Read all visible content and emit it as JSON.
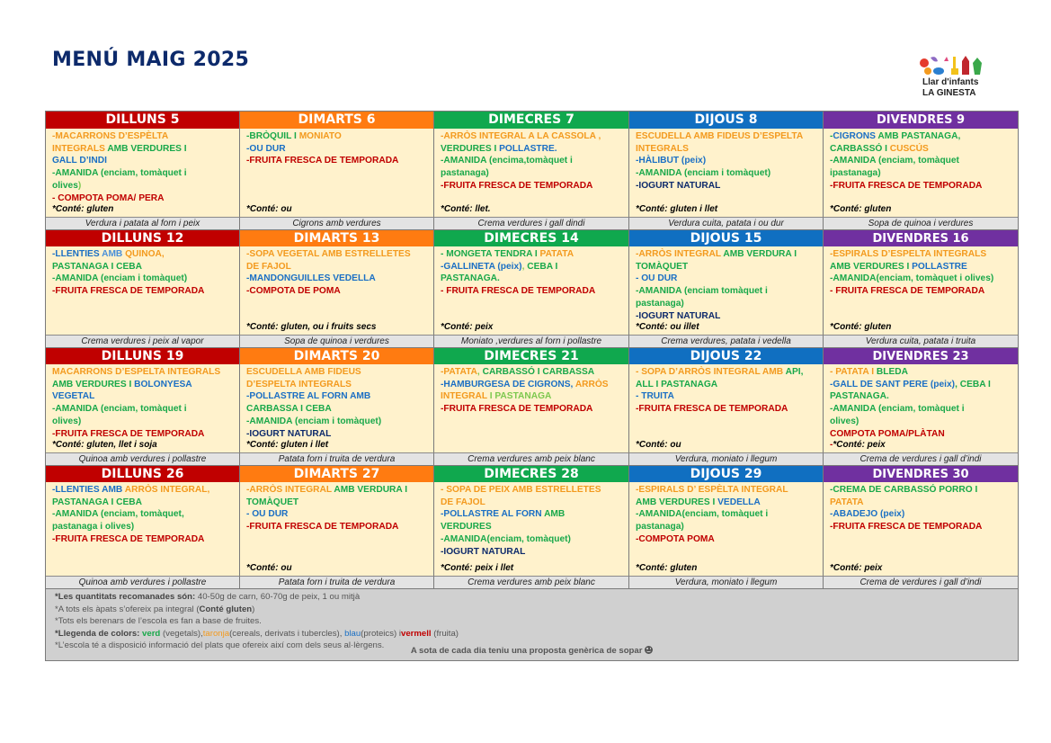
{
  "title": "MENÚ MAIG 2025",
  "logo": {
    "line1": "Llar d'infants",
    "line2": "LA GINESTA"
  },
  "day_colors": {
    "dilluns": "#c00000",
    "dimarts": "#ff7b11",
    "dimecres": "#10a84e",
    "dijous": "#106fc1",
    "divendres": "#7030a0"
  },
  "food_colors": {
    "verd": "#18a84a",
    "taronja": "#f39a1e",
    "blau": "#1a6fc4",
    "vermell": "#c00000"
  },
  "weeks": [
    {
      "days": [
        {
          "header": "DILLUNS  5",
          "lines": [
            [
              [
                "o",
                "-MACARRONS D’ESPÈLTA"
              ]
            ],
            [
              [
                "o",
                "INTEGRALS  "
              ],
              [
                "g",
                "AMB VERDURES I"
              ]
            ],
            [
              [
                "b",
                "GALL D’INDI"
              ]
            ],
            [
              [
                "g",
                "-AMANIDA (enciam, tomàquet i"
              ]
            ],
            [
              [
                "g",
                "olives"
              ],
              [
                "lg",
                ")"
              ]
            ],
            [
              [
                "r",
                "- COMPOTA POMA/ PERA"
              ]
            ]
          ],
          "allergens": "*Conté: gluten",
          "dinner": "Verdura i patata al forn i peix"
        },
        {
          "header": "DIMARTS  6",
          "lines": [
            [
              [
                "g",
                "-BRÒQUIL I "
              ],
              [
                "o",
                "MONIATO"
              ]
            ],
            [
              [
                "b",
                "-OU DUR"
              ]
            ],
            [
              [
                "r",
                "-FRUITA FRESCA DE TEMPORADA"
              ]
            ]
          ],
          "allergens": "*Conté: ou",
          "dinner": "Cigrons amb verdures"
        },
        {
          "header": "DIMECRES 7",
          "lines": [
            [
              [
                "o",
                "-ARRÒS INTEGRAL A LA CASSOLA ,"
              ]
            ],
            [
              [
                "g",
                "VERDURES I "
              ],
              [
                "b",
                "POLLASTRE."
              ]
            ],
            [
              [
                "g",
                "-AMANIDA (encima,tomàquet i"
              ]
            ],
            [
              [
                "g",
                "pastanaga)"
              ]
            ],
            [
              [
                "r",
                "-FRUITA FRESCA DE TEMPORADA"
              ]
            ]
          ],
          "allergens": "*Conté: llet.",
          "dinner": "Crema verdures i gall dindi"
        },
        {
          "header": "DIJOUS 8",
          "lines": [
            [
              [
                "o",
                "ESCUDELLA AMB FIDEUS D’ESPELTA"
              ]
            ],
            [
              [
                "o",
                "INTEGRALS"
              ]
            ],
            [
              [
                "b",
                "-HÀLIBUT (peix)"
              ]
            ],
            [
              [
                "g",
                "-AMANIDA (enciam i tomàquet)"
              ]
            ],
            [
              [
                "n",
                "-IOGURT NATURAL"
              ]
            ]
          ],
          "allergens": "*Conté:  gluten i llet",
          "dinner": "Verdura cuita, patata i ou dur"
        },
        {
          "header": "DIVENDRES 9",
          "lines": [
            [
              [
                "g",
                "-"
              ],
              [
                "b",
                "CIGRONS "
              ],
              [
                "g",
                "AMB PASTANAGA,"
              ]
            ],
            [
              [
                "g",
                "CARBASSÓ I "
              ],
              [
                "o",
                "CUSCÚS"
              ]
            ],
            [
              [
                "g",
                "-AMANIDA (enciam, tomàquet"
              ]
            ],
            [
              [
                "g",
                "ipastanaga)"
              ]
            ],
            [
              [
                "r",
                "-FRUITA FRESCA DE TEMPORADA"
              ]
            ]
          ],
          "allergens": "*Conté:  gluten",
          "dinner": "Sopa de quinoa i verdures"
        }
      ]
    },
    {
      "days": [
        {
          "header": "DILLUNS  12",
          "lines": [
            [
              [
                "b",
                "-LLENTIES "
              ],
              [
                "lb",
                "AMB  "
              ],
              [
                "o",
                "QUINOA,"
              ]
            ],
            [
              [
                "g",
                "PASTANAGA I CEBA"
              ]
            ],
            [
              [
                "g",
                "-AMANIDA (enciam i tomàquet)"
              ]
            ],
            [
              [
                "r",
                "-FRUITA FRESCA DE TEMPORADA"
              ]
            ]
          ],
          "allergens": "",
          "dinner": "Crema verdures i peix al vapor"
        },
        {
          "header": "DIMARTS 13",
          "lines": [
            [
              [
                "o",
                "-SOPA VEGETAL AMB ESTRELLETES"
              ]
            ],
            [
              [
                "o",
                "DE FAJOL"
              ]
            ],
            [
              [
                "b",
                "-MANDONGUILLES VEDELLA"
              ]
            ],
            [
              [
                "r",
                "-COMPOTA DE POMA"
              ]
            ]
          ],
          "allergens": "*Conté: gluten, ou i fruits secs",
          "dinner": "Sopa de quinoa i verdures"
        },
        {
          "header": "DIMECRES 14",
          "lines": [
            [
              [
                "g",
                "- MONGETA TENDRA I "
              ],
              [
                "o",
                "PATATA"
              ]
            ],
            [
              [
                "b",
                "-GALLINETA (peix)"
              ],
              [
                "lg",
                ", "
              ],
              [
                "g",
                "CEBA I"
              ]
            ],
            [
              [
                "g",
                "PASTANAGA."
              ]
            ],
            [
              [
                "r",
                "- FRUITA FRESCA DE TEMPORADA"
              ]
            ]
          ],
          "allergens": "*Conté: peix",
          "dinner": "Moniato ,verdures al  forn i pollastre"
        },
        {
          "header": "DIJOUS 15",
          "lines": [
            [
              [
                "o",
                "-ARRÒS INTEGRAL "
              ],
              [
                "g",
                "AMB VERDURA I"
              ]
            ],
            [
              [
                "g",
                "TOMÀQUET"
              ]
            ],
            [
              [
                "b",
                "- OU DUR"
              ]
            ],
            [
              [
                "g",
                "-AMANIDA (enciam tomàquet i"
              ]
            ],
            [
              [
                "g",
                "pastanaga)"
              ]
            ],
            [
              [
                "n",
                "-IOGURT NATURAL"
              ]
            ]
          ],
          "allergens": "*Conté: ou  illet",
          "dinner": "Crema verdures,  patata i vedella"
        },
        {
          "header": "DIVENDRES 16",
          "lines": [
            [
              [
                "o",
                "-ESPIRALS  D’ESPELTA  INTEGRALS"
              ]
            ],
            [
              [
                "g",
                "AMB VERDURES I "
              ],
              [
                "b",
                "POLLASTRE"
              ]
            ],
            [
              [
                "g",
                "-AMANIDA(enciam, tomàquet i olives)"
              ]
            ],
            [
              [
                "r",
                "- FRUITA FRESCA DE TEMPORADA"
              ]
            ]
          ],
          "allergens": "*Conté: gluten",
          "dinner": "Verdura cuita, patata i truita"
        }
      ]
    },
    {
      "days": [
        {
          "header": "DILLUNS  19",
          "lines": [
            [
              [
                "o",
                "MACARRONS D’ESPELTA INTEGRALS"
              ]
            ],
            [
              [
                "g",
                "AMB VERDURES I "
              ],
              [
                "b",
                "BOLONYESA"
              ]
            ],
            [
              [
                "b",
                "VEGETAL"
              ]
            ],
            [
              [
                "g",
                "-AMANIDA (enciam,  tomàquet i"
              ]
            ],
            [
              [
                "g",
                "olives)"
              ]
            ],
            [
              [
                "r",
                "-FRUITA FRESCA DE TEMPORADA"
              ]
            ]
          ],
          "allergens": "*Conté: gluten, llet i soja",
          "dinner": "Quinoa amb verdures i pollastre"
        },
        {
          "header": "DIMARTS 20",
          "lines": [
            [
              [
                "o",
                "ESCUDELLA  AMB FIDEUS"
              ]
            ],
            [
              [
                "o",
                "D’ESPELTA  INTEGRALS"
              ]
            ],
            [
              [
                "b",
                "-POLLASTRE AL FORN  AMB"
              ]
            ],
            [
              [
                "g",
                "CARBASSA I CEBA"
              ]
            ],
            [
              [
                "g",
                "-AMANIDA (enciam i tomàquet)"
              ]
            ],
            [
              [
                "n",
                "-IOGURT NATURAL"
              ]
            ]
          ],
          "allergens": "*Conté:  gluten i llet",
          "dinner": "Patata forn i truita de verdura"
        },
        {
          "header": "DIMECRES  21",
          "lines": [
            [
              [
                "o",
                "-PATATA"
              ],
              [
                "lg",
                ", "
              ],
              [
                "g",
                "CARBASSÓ I CARBASSA"
              ]
            ],
            [
              [
                "b",
                "-HAMBURGESA DE CIGRONS, "
              ],
              [
                "o",
                "ARRÒS"
              ]
            ],
            [
              [
                "o",
                "INTEGRAL  "
              ],
              [
                "lg",
                "I PASTANAGA"
              ]
            ],
            [
              [
                "r",
                "-FRUITA FRESCA DE TEMPORADA"
              ]
            ]
          ],
          "allergens": "",
          "dinner": "Crema  verdures amb peix blanc"
        },
        {
          "header": "DIJOUS  22",
          "lines": [
            [
              [
                "o",
                "- SOPA D’ARRÒS INTEGRAL AMB "
              ],
              [
                "g",
                "API,"
              ]
            ],
            [
              [
                "g",
                "ALL I PASTANAGA"
              ]
            ],
            [
              [
                "b",
                "- TRUITA"
              ]
            ],
            [
              [
                "r",
                "-FRUITA FRESCA DE TEMPORADA"
              ]
            ]
          ],
          "allergens": "*Conté: ou",
          "dinner": "Verdura, moniato  i llegum"
        },
        {
          "header": "DIVENDRES  23",
          "lines": [
            [
              [
                "o",
                "- PATATA I "
              ],
              [
                "g",
                "BLEDA"
              ]
            ],
            [
              [
                "b",
                "-GALL DE SANT PERE (peix)"
              ],
              [
                "g",
                ", CEBA I"
              ]
            ],
            [
              [
                "g",
                "PASTANAGA."
              ]
            ],
            [
              [
                "g",
                "-AMANIDA (enciam, tomàquet i"
              ]
            ],
            [
              [
                "g",
                "olives)"
              ]
            ],
            [
              [
                "r",
                "COMPOTA POMA/PLÀTAN"
              ]
            ]
          ],
          "allergens_prefix": "-",
          "allergens": "*Conté:  peix",
          "dinner": "Crema de verdures i gall d’indi"
        }
      ]
    },
    {
      "days": [
        {
          "header": "DILLUNS  26",
          "lines": [
            [
              [
                "b",
                "-LLENTIES AMB "
              ],
              [
                "o",
                "ARRÒS INTEGRAL,"
              ]
            ],
            [
              [
                "g",
                "PASTANAGA I CEBA"
              ]
            ],
            [
              [
                "g",
                "-AMANIDA (enciam, tomàquet,"
              ]
            ],
            [
              [
                "g",
                "pastanaga i olives)"
              ]
            ],
            [
              [
                "r",
                "-FRUITA FRESCA DE TEMPORADA"
              ]
            ]
          ],
          "allergens": "",
          "dinner": "Quinoa amb verdures i pollastre"
        },
        {
          "header": "DIMARTS 27",
          "lines": [
            [
              [
                "o",
                "-ARRÒS INTEGRAL "
              ],
              [
                "g",
                "AMB VERDURA I"
              ]
            ],
            [
              [
                "g",
                "TOMÀQUET"
              ]
            ],
            [
              [
                "b",
                "- OU DUR"
              ]
            ],
            [
              [
                "r",
                "-FRUITA FRESCA DE TEMPORADA"
              ]
            ]
          ],
          "allergens": "*Conté:  ou",
          "dinner": "Patata forn i truita de verdura"
        },
        {
          "header": "DIMECRES  28",
          "lines": [
            [
              [
                "o",
                "- SOPA DE PEIX AMB ESTRELLETES"
              ]
            ],
            [
              [
                "o",
                "DE FAJOL"
              ]
            ],
            [
              [
                "b",
                "-POLLASTRE AL FORN "
              ],
              [
                "g",
                "AMB"
              ]
            ],
            [
              [
                "g",
                "VERDURES"
              ]
            ],
            [
              [
                "g",
                "-AMANIDA(enciam, tomàquet)"
              ]
            ],
            [
              [
                "n",
                "-IOGURT NATURAL"
              ]
            ]
          ],
          "allergens": "*Conté:  peix i llet",
          "dinner": "Crema  verdures amb peix blanc"
        },
        {
          "header": "DIJOUS  29",
          "lines": [
            [
              [
                "o",
                "-ESPIRALS  D’ ESPÈLTA INTEGRAL"
              ]
            ],
            [
              [
                "g",
                "AMB VERDURES I  "
              ],
              [
                "b",
                "VEDELLA"
              ]
            ],
            [
              [
                "g",
                "-AMANIDA(enciam, tomàquet i"
              ]
            ],
            [
              [
                "g",
                "pastanaga)"
              ]
            ],
            [
              [
                "r",
                "-COMPOTA POMA"
              ]
            ]
          ],
          "allergens": "*Conté: gluten",
          "dinner": "Verdura, moniato  i llegum"
        },
        {
          "header": "DIVENDRES  30",
          "lines": [
            [
              [
                "g",
                "-CREMA DE CARBASSÓ PORRO I"
              ]
            ],
            [
              [
                "o",
                "PATATA"
              ]
            ],
            [
              [
                "b",
                "-ABADEJO (peix)"
              ]
            ],
            [
              [
                "r",
                "-FRUITA FRESCA DE TEMPORADA"
              ]
            ]
          ],
          "allergens": "*Conté: peix",
          "dinner": "Crema de verdures i gall d’indi"
        }
      ]
    }
  ],
  "notes": {
    "n1_bold": "*Les quantitats recomanades són:",
    "n1_rest": " 40-50g de carn, 60-70g de peix, 1 ou mitjà",
    "n2_a": "*A tots els àpats s’ofereix pa integral (",
    "n2_bold": "Conté gluten",
    "n2_b": ")",
    "n3": "*Tots els berenars de l’escola es fan a base de fruites.",
    "n4_bold": "*Llegenda de colors: ",
    "n4_verd": "verd",
    "n4_verd_desc": " (vegetals),",
    "n4_taronja": "taronja",
    "n4_taronja_desc": "(cereals, derivats i tubercles), ",
    "n4_blau": "blau",
    "n4_blau_desc": "(proteics) i",
    "n4_vermell": "vermell",
    "n4_vermell_desc": " (fruita)",
    "n5": "*L’escola té a disposició informació del plats que ofereix així com dels seus al·lèrgens.",
    "footer": "A sota de cada dia teniu una proposta genèrica de sopar",
    "footer_icon": "smiley-icon"
  }
}
